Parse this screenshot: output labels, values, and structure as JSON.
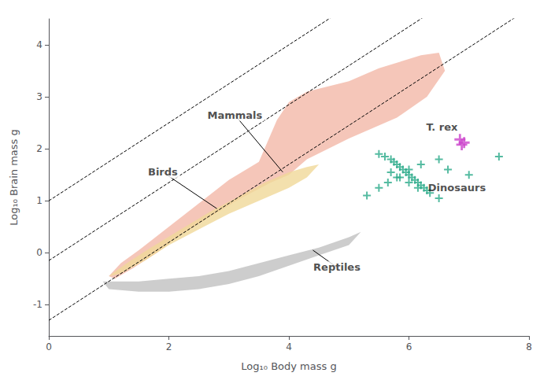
{
  "chart_data": {
    "type": "scatter",
    "title": "",
    "xlabel": "Log₁₀ Body mass g",
    "ylabel": "Log₁₀ Brain mass g",
    "xlim": [
      0,
      8
    ],
    "ylim": [
      -1.6,
      4.5
    ],
    "xticks": [
      0,
      2,
      4,
      6,
      8
    ],
    "yticks": [
      -1,
      0,
      1,
      2,
      3,
      4
    ],
    "grid": false,
    "areas": [
      {
        "color": "#c0c0c0",
        "points": [
          [
            0.9,
            -0.55
          ],
          [
            1.5,
            -0.55
          ],
          [
            2.0,
            -0.5
          ],
          [
            2.5,
            -0.45
          ],
          [
            3.0,
            -0.35
          ],
          [
            3.5,
            -0.2
          ],
          [
            4.0,
            -0.05
          ],
          [
            4.5,
            0.1
          ],
          [
            5.0,
            0.3
          ],
          [
            5.2,
            0.4
          ],
          [
            5.0,
            0.15
          ],
          [
            4.5,
            -0.05
          ],
          [
            4.0,
            -0.25
          ],
          [
            3.5,
            -0.45
          ],
          [
            3.0,
            -0.6
          ],
          [
            2.5,
            -0.7
          ],
          [
            2.0,
            -0.75
          ],
          [
            1.5,
            -0.75
          ],
          [
            1.0,
            -0.7
          ],
          [
            0.9,
            -0.55
          ]
        ]
      },
      {
        "color": "#f2b8a8",
        "points": [
          [
            1.0,
            -0.45
          ],
          [
            1.2,
            -0.2
          ],
          [
            1.5,
            0.05
          ],
          [
            2.0,
            0.5
          ],
          [
            2.5,
            0.95
          ],
          [
            3.0,
            1.4
          ],
          [
            3.5,
            1.75
          ],
          [
            3.8,
            2.55
          ],
          [
            4.0,
            2.9
          ],
          [
            4.3,
            3.1
          ],
          [
            5.0,
            3.3
          ],
          [
            5.5,
            3.55
          ],
          [
            6.2,
            3.8
          ],
          [
            6.5,
            3.85
          ],
          [
            6.6,
            3.5
          ],
          [
            6.3,
            3.0
          ],
          [
            5.8,
            2.6
          ],
          [
            5.0,
            2.2
          ],
          [
            4.3,
            1.8
          ],
          [
            4.0,
            1.5
          ],
          [
            3.7,
            1.35
          ],
          [
            3.2,
            1.05
          ],
          [
            2.7,
            0.7
          ],
          [
            2.2,
            0.35
          ],
          [
            1.8,
            0.0
          ],
          [
            1.4,
            -0.3
          ],
          [
            1.1,
            -0.5
          ],
          [
            1.0,
            -0.45
          ]
        ]
      },
      {
        "color": "#f0d898",
        "points": [
          [
            1.0,
            -0.45
          ],
          [
            1.3,
            -0.2
          ],
          [
            1.7,
            0.1
          ],
          [
            2.2,
            0.45
          ],
          [
            2.7,
            0.8
          ],
          [
            3.2,
            1.1
          ],
          [
            3.6,
            1.35
          ],
          [
            4.0,
            1.55
          ],
          [
            4.3,
            1.65
          ],
          [
            4.5,
            1.7
          ],
          [
            4.3,
            1.45
          ],
          [
            4.0,
            1.25
          ],
          [
            3.5,
            1.0
          ],
          [
            3.0,
            0.75
          ],
          [
            2.5,
            0.45
          ],
          [
            2.0,
            0.15
          ],
          [
            1.6,
            -0.15
          ],
          [
            1.2,
            -0.4
          ],
          [
            1.0,
            -0.45
          ]
        ]
      }
    ],
    "lines": [
      {
        "slope": 0.75,
        "intercept": -1.3,
        "line_style": "dashed",
        "color": "black"
      },
      {
        "slope": 0.75,
        "intercept": -0.15,
        "line_style": "dashed",
        "color": "black"
      },
      {
        "slope": 0.75,
        "intercept": 1.0,
        "line_style": "dashed",
        "color": "black"
      }
    ],
    "series": [
      {
        "type": "scatter",
        "marker": "plus",
        "color": "#2aaa8a",
        "x": [
          5.5,
          5.6,
          5.7,
          5.75,
          5.8,
          5.85,
          5.9,
          5.95,
          6.0,
          6.05,
          6.1,
          6.15,
          6.2,
          6.25,
          6.3,
          5.7,
          5.85,
          6.0,
          6.15,
          6.35,
          6.5,
          6.65,
          7.0,
          7.5,
          5.3,
          5.5,
          5.65,
          5.8,
          6.0,
          6.2,
          6.5
        ],
        "y": [
          1.9,
          1.85,
          1.8,
          1.75,
          1.7,
          1.65,
          1.6,
          1.55,
          1.5,
          1.45,
          1.4,
          1.35,
          1.3,
          1.25,
          1.2,
          1.55,
          1.45,
          1.35,
          1.25,
          1.15,
          1.05,
          1.6,
          1.5,
          1.85,
          1.1,
          1.25,
          1.35,
          1.45,
          1.6,
          1.7,
          1.8
        ]
      },
      {
        "type": "scatter",
        "marker": "plus",
        "color": "#cc44cc",
        "x": [
          6.85,
          6.92,
          6.88
        ],
        "y": [
          2.18,
          2.12,
          2.08
        ]
      }
    ],
    "annotations": [
      {
        "text": "Mammals",
        "xy": [
          3.9,
          1.55
        ],
        "xytext": [
          3.1,
          2.65
        ],
        "color": "black"
      },
      {
        "text": "Birds",
        "xy": [
          2.8,
          0.85
        ],
        "xytext": [
          1.9,
          1.55
        ],
        "color": "black"
      },
      {
        "text": "Reptiles",
        "xy": [
          4.4,
          0.05
        ],
        "xytext": [
          4.8,
          -0.28
        ],
        "color": "black"
      },
      {
        "text": "Dinosaurs",
        "xytext": [
          6.8,
          1.25
        ]
      },
      {
        "text": "T. rex",
        "xytext": [
          6.55,
          2.42
        ]
      }
    ]
  }
}
